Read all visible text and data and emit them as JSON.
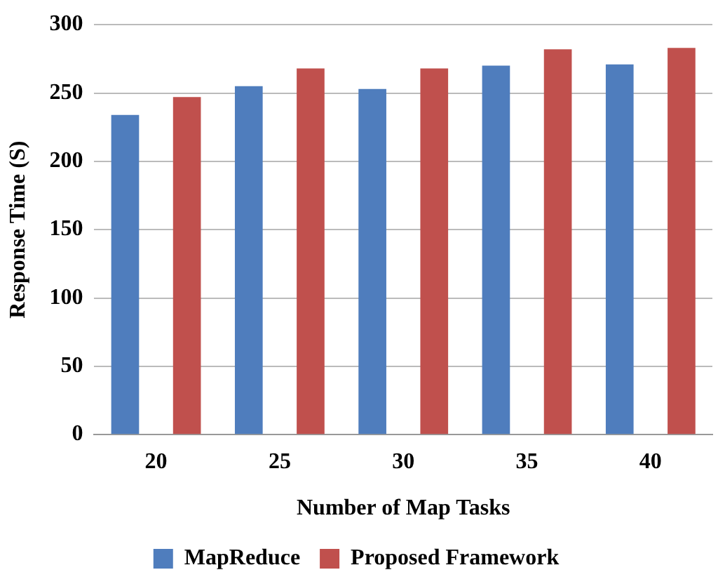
{
  "chart_data": {
    "type": "bar",
    "xlabel": "Number of Map Tasks",
    "ylabel": "Response Time (S)",
    "categories": [
      "20",
      "25",
      "30",
      "35",
      "40"
    ],
    "series": [
      {
        "name": "MapReduce",
        "color": "#4f7dbd",
        "values": [
          234,
          255,
          253,
          270,
          271
        ]
      },
      {
        "name": "Proposed Framework",
        "color": "#c0504d",
        "values": [
          247,
          268,
          268,
          282,
          283
        ]
      }
    ],
    "ylim": [
      0,
      300
    ],
    "yticks": [
      0,
      50,
      100,
      150,
      200,
      250,
      300
    ],
    "grid": "y",
    "legend": "bottom"
  }
}
